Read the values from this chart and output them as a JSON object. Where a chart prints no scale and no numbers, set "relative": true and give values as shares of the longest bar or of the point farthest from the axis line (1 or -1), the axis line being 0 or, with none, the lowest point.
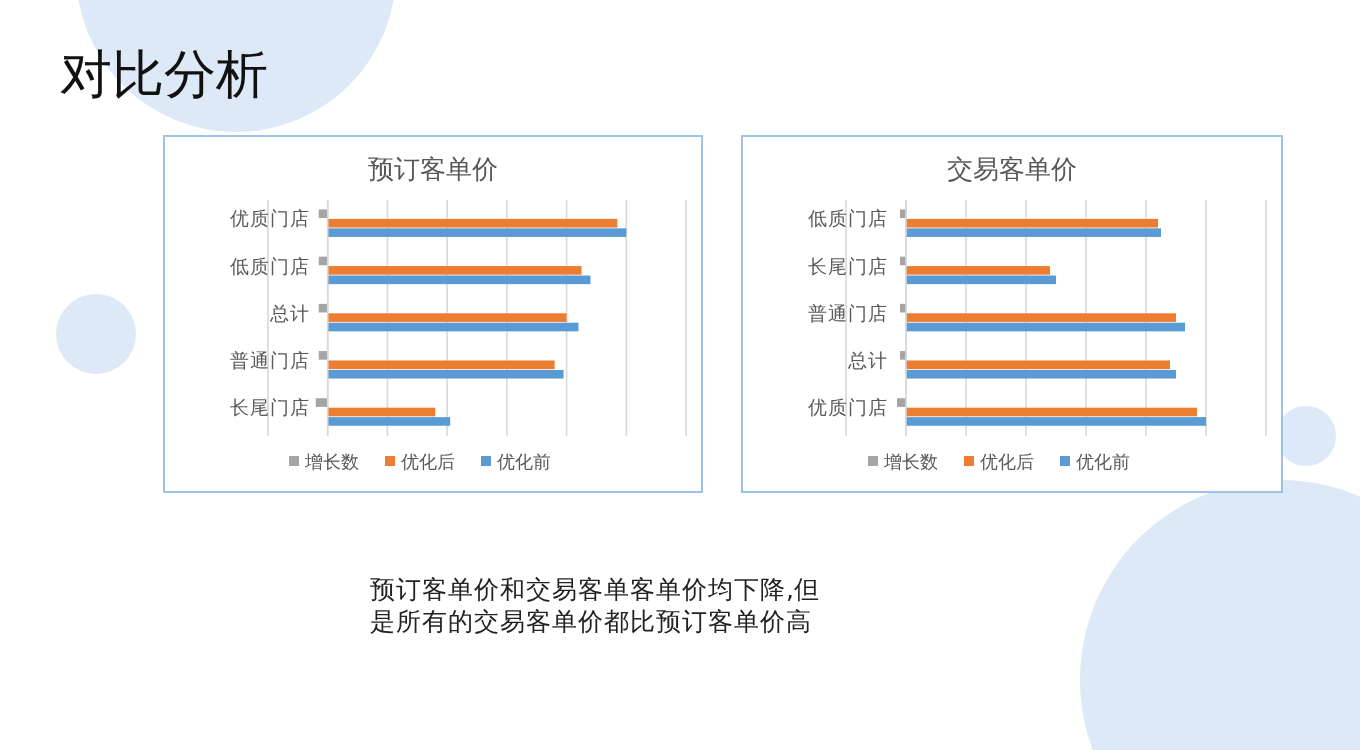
{
  "chart_data": [
    {
      "type": "other",
      "title": "对比分析",
      "annotations": [
        "预订客单价和交易客单客单价均下降,但是所有的交易客单价都比预订客单价高"
      ]
    },
    {
      "type": "bar",
      "orientation": "horizontal",
      "relative": true,
      "title": "预订客单价",
      "categories": [
        "优质门店",
        "低质门店",
        "总计",
        "普通门店",
        "长尾门店"
      ],
      "grid": "x",
      "legend": "bottom",
      "series": [
        {
          "name": "增长数",
          "color": "#a5a5a5",
          "values": [
            -0.03,
            -0.03,
            -0.03,
            -0.03,
            -0.04
          ]
        },
        {
          "name": "优化后",
          "color": "#ed7d31",
          "values": [
            0.97,
            0.85,
            0.8,
            0.76,
            0.36
          ]
        },
        {
          "name": "优化前",
          "color": "#5b9bd5",
          "values": [
            1,
            0.88,
            0.84,
            0.79,
            0.41
          ]
        }
      ]
    },
    {
      "type": "bar",
      "orientation": "horizontal",
      "relative": true,
      "title": "交易客单价",
      "categories": [
        "低质门店",
        "长尾门店",
        "普通门店",
        "总计",
        "优质门店"
      ],
      "grid": "x",
      "legend": "bottom",
      "series": [
        {
          "name": "增长数",
          "color": "#a5a5a5",
          "values": [
            -0.02,
            -0.02,
            -0.02,
            -0.02,
            -0.03
          ]
        },
        {
          "name": "优化后",
          "color": "#ed7d31",
          "values": [
            0.84,
            0.48,
            0.9,
            0.88,
            0.97
          ]
        },
        {
          "name": "优化前",
          "color": "#5b9bd5",
          "values": [
            0.85,
            0.5,
            0.93,
            0.9,
            1
          ]
        }
      ]
    }
  ]
}
